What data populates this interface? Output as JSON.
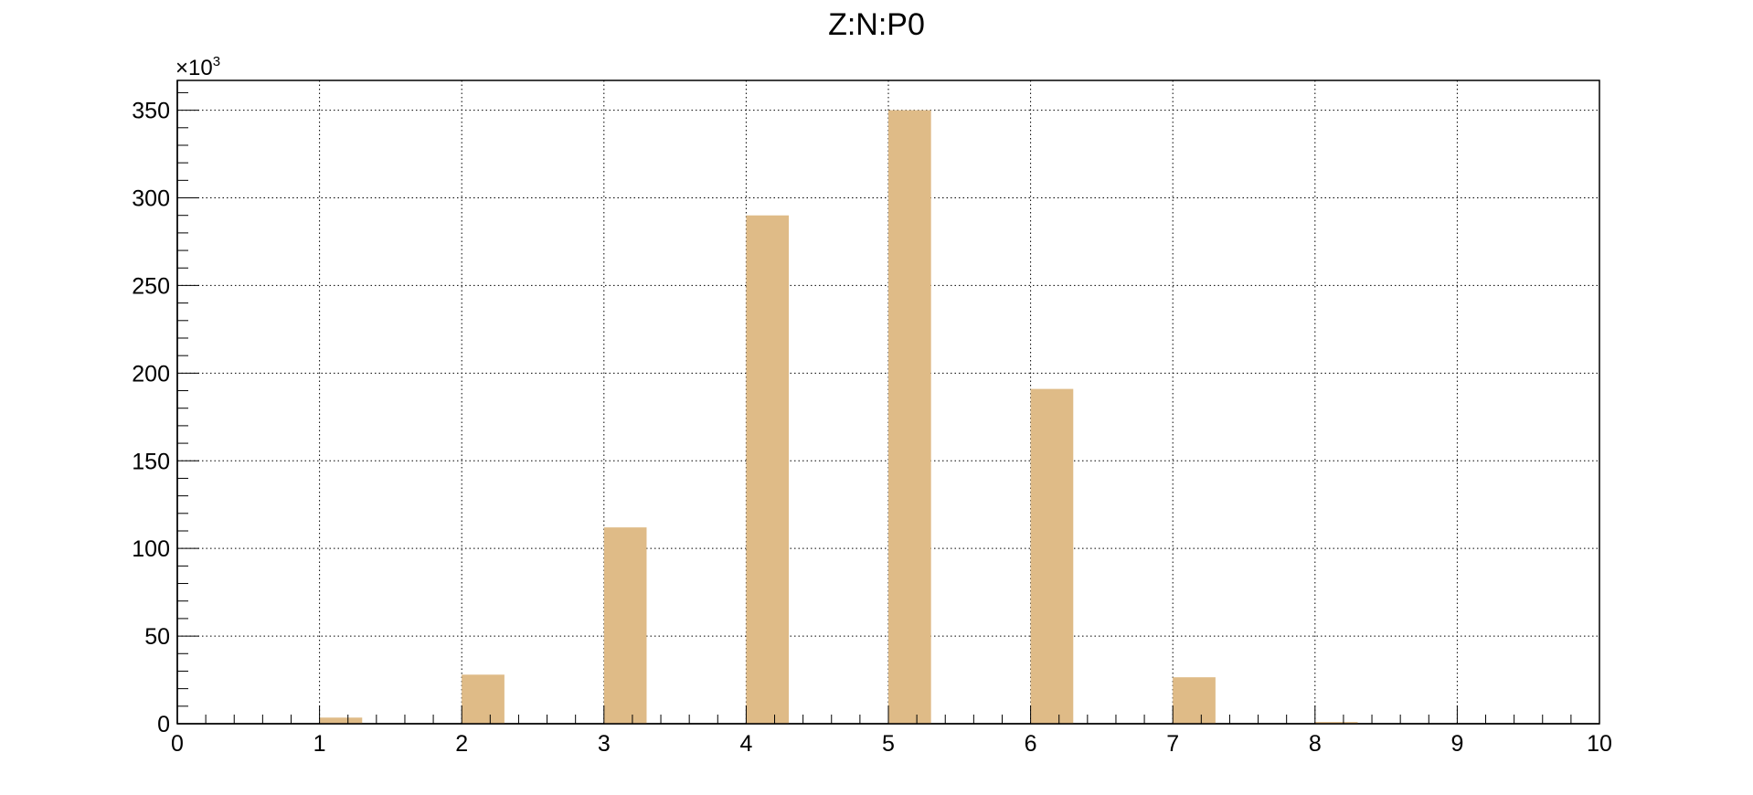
{
  "chart_data": {
    "type": "bar",
    "title": "Z:N:P0",
    "xlabel": "",
    "ylabel": "",
    "x_ticks": [
      "0",
      "1",
      "2",
      "3",
      "4",
      "5",
      "6",
      "7",
      "8",
      "9",
      "10"
    ],
    "y_ticks": [
      "0",
      "50",
      "100",
      "150",
      "200",
      "250",
      "300",
      "350"
    ],
    "y_exponent": {
      "base": "×10",
      "power": "3"
    },
    "xlim": [
      0,
      10
    ],
    "ylim": [
      0,
      367
    ],
    "grid": true,
    "bins": [
      1.0,
      2.0,
      3.0,
      4.0,
      5.0,
      6.0,
      7.0,
      8.0
    ],
    "bin_width": 0.3,
    "values": [
      3.5,
      28,
      112,
      290,
      350,
      191,
      26.5,
      1
    ],
    "colors": {
      "bar": "#dfbb87",
      "axis": "#000000",
      "grid": "#000000"
    }
  }
}
